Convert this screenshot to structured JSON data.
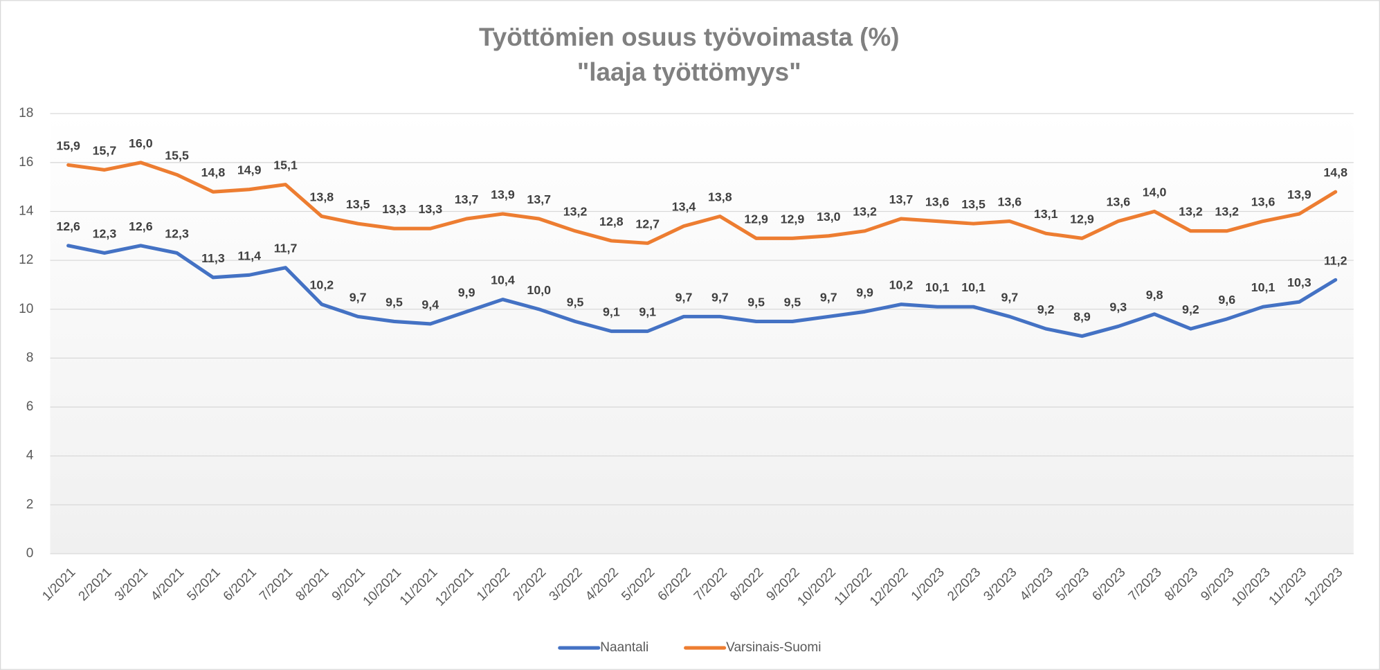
{
  "chart_data": {
    "type": "line",
    "title": [
      "Työttömien osuus työvoimasta (%)",
      "\"laaja työttömyys\""
    ],
    "categories": [
      "1/2021",
      "2/2021",
      "3/2021",
      "4/2021",
      "5/2021",
      "6/2021",
      "7/2021",
      "8/2021",
      "9/2021",
      "10/2021",
      "11/2021",
      "12/2021",
      "1/2022",
      "2/2022",
      "3/2022",
      "4/2022",
      "5/2022",
      "6/2022",
      "7/2022",
      "8/2022",
      "9/2022",
      "10/2022",
      "11/2022",
      "12/2022",
      "1/2023",
      "2/2023",
      "3/2023",
      "4/2023",
      "5/2023",
      "6/2023",
      "7/2023",
      "8/2023",
      "9/2023",
      "10/2023",
      "11/2023",
      "12/2023"
    ],
    "series": [
      {
        "name": "Naantali",
        "color": "#4472c4",
        "values": [
          12.6,
          12.3,
          12.6,
          12.3,
          11.3,
          11.4,
          11.7,
          10.2,
          9.7,
          9.5,
          9.4,
          9.9,
          10.4,
          10.0,
          9.5,
          9.1,
          9.1,
          9.7,
          9.7,
          9.5,
          9.5,
          9.7,
          9.9,
          10.2,
          10.1,
          10.1,
          9.7,
          9.2,
          8.9,
          9.3,
          9.8,
          9.2,
          9.6,
          10.1,
          10.3,
          11.2
        ],
        "value_labels": [
          "12,6",
          "12,3",
          "12,6",
          "12,3",
          "11,3",
          "11,4",
          "11,7",
          "10,2",
          "9,7",
          "9,5",
          "9,4",
          "9,9",
          "10,4",
          "10,0",
          "9,5",
          "9,1",
          "9,1",
          "9,7",
          "9,7",
          "9,5",
          "9,5",
          "9,7",
          "9,9",
          "10,2",
          "10,1",
          "10,1",
          "9,7",
          "9,2",
          "8,9",
          "9,3",
          "9,8",
          "9,2",
          "9,6",
          "10,1",
          "10,3",
          "11,2"
        ]
      },
      {
        "name": "Varsinais-Suomi",
        "color": "#ed7d31",
        "values": [
          15.9,
          15.7,
          16.0,
          15.5,
          14.8,
          14.9,
          15.1,
          13.8,
          13.5,
          13.3,
          13.3,
          13.7,
          13.9,
          13.7,
          13.2,
          12.8,
          12.7,
          13.4,
          13.8,
          12.9,
          12.9,
          13.0,
          13.2,
          13.7,
          13.6,
          13.5,
          13.6,
          13.1,
          12.9,
          13.6,
          14.0,
          13.2,
          13.2,
          13.6,
          13.9,
          14.8
        ],
        "value_labels": [
          "15,9",
          "15,7",
          "16,0",
          "15,5",
          "14,8",
          "14,9",
          "15,1",
          "13,8",
          "13,5",
          "13,3",
          "13,3",
          "13,7",
          "13,9",
          "13,7",
          "13,2",
          "12,8",
          "12,7",
          "13,4",
          "13,8",
          "12,9",
          "12,9",
          "13,0",
          "13,2",
          "13,7",
          "13,6",
          "13,5",
          "13,6",
          "13,1",
          "12,9",
          "13,6",
          "14,0",
          "13,2",
          "13,2",
          "13,6",
          "13,9",
          "14,8"
        ]
      }
    ],
    "ylim": [
      0,
      18
    ],
    "yticks": [
      0,
      2,
      4,
      6,
      8,
      10,
      12,
      14,
      16,
      18
    ],
    "grid": true,
    "legend": "bottom"
  }
}
